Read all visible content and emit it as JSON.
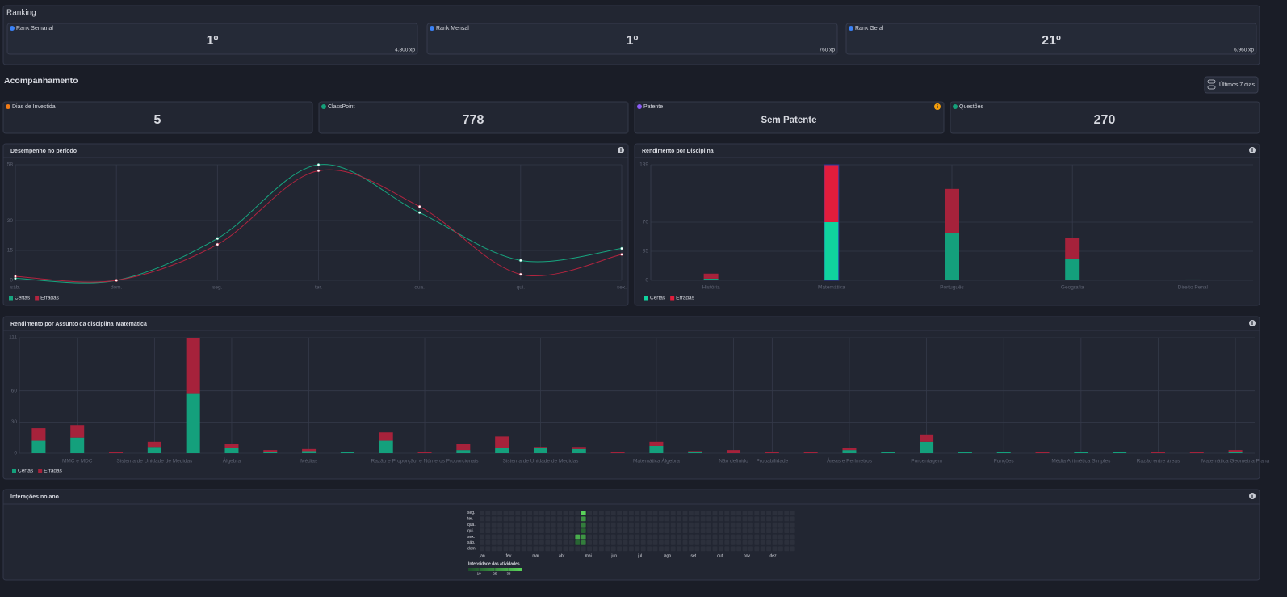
{
  "ranking": {
    "title": "Ranking",
    "cards": [
      {
        "label": "Rank Semanal",
        "position": "1º",
        "xp": "4.800 xp"
      },
      {
        "label": "Rank Mensal",
        "position": "1º",
        "xp": "760 xp"
      },
      {
        "label": "Rank Geral",
        "position": "21º",
        "xp": "6.960 xp"
      }
    ]
  },
  "tracking": {
    "title": "Acompanhamento",
    "period": "Últimos 7 dias",
    "cards": [
      {
        "label": "Dias de Investida",
        "value": 5
      },
      {
        "label": "ClassPoint",
        "value": 778
      },
      {
        "label": "Patente",
        "value": "Sem Patente"
      },
      {
        "label": "Questões",
        "value": 270
      }
    ]
  },
  "chart_data": [
    {
      "type": "line",
      "title": "Desempenho no período",
      "categories": [
        "sáb.",
        "dom.",
        "seg.",
        "ter.",
        "qua.",
        "qui.",
        "sex."
      ],
      "series": [
        {
          "name": "Certas",
          "color": "#17a57f",
          "values": [
            1,
            0,
            21,
            58,
            34,
            10,
            16
          ]
        },
        {
          "name": "Erradas",
          "color": "#b2243f",
          "values": [
            2,
            0,
            18,
            55,
            37,
            3,
            13
          ]
        }
      ],
      "ylim": [
        0,
        58
      ],
      "yticks": [
        0,
        15,
        30,
        58
      ],
      "grid": true,
      "legend": "bottom-left"
    },
    {
      "type": "bar",
      "stacked": true,
      "title": "Rendimento por Disciplina",
      "categories": [
        "História",
        "Matemática",
        "Português",
        "Geografia",
        "Direito Penal"
      ],
      "series": [
        {
          "name": "Certas",
          "color": "#14a07c",
          "highlight_color": "#10d39e",
          "values": [
            2,
            70,
            57,
            26,
            1
          ]
        },
        {
          "name": "Erradas",
          "color": "#a6223b",
          "highlight_color": "#e11d3c",
          "values": [
            6,
            69,
            53,
            25,
            0
          ]
        }
      ],
      "highlight": 1,
      "ylim": [
        0,
        139
      ],
      "yticks": [
        0,
        35,
        70,
        139
      ],
      "grid": true,
      "legend": "bottom-left"
    },
    {
      "type": "bar",
      "stacked": true,
      "title": "Rendimento por Assunto da disciplina",
      "discipline": "Matemática",
      "categories": [
        null,
        "MMC e MDC",
        null,
        "Sistema de Unidade de Medidas",
        null,
        "Álgebra",
        null,
        "Médias",
        null,
        null,
        "Razão e Proporção; e Números Proporcionais",
        null,
        null,
        "Sistema de Unidade de Medidas",
        null,
        null,
        "Matemática Álgebra",
        null,
        "Não definido",
        "Probabilidade",
        null,
        "Áreas e Perímetros",
        null,
        "Porcentagem",
        null,
        "Funções",
        null,
        "Média Aritmética Simples",
        null,
        "Razão entre áreas",
        null,
        "Matemática Geometria Plana"
      ],
      "series": [
        {
          "name": "Certas",
          "color": "#14a07c",
          "values": [
            12,
            15,
            0,
            6,
            57,
            5,
            1,
            2,
            1,
            12,
            0,
            3,
            5,
            5,
            4,
            0,
            7,
            1,
            0,
            0,
            0,
            3,
            1,
            11,
            1,
            1,
            0,
            1,
            1,
            0,
            0,
            1
          ]
        },
        {
          "name": "Erradas",
          "color": "#a6223b",
          "values": [
            12,
            12,
            1,
            5,
            54,
            4,
            2,
            2,
            0,
            8,
            1,
            6,
            11,
            1,
            2,
            1,
            4,
            1,
            3,
            1,
            1,
            2,
            0,
            7,
            0,
            0,
            1,
            0,
            0,
            1,
            1,
            2
          ]
        }
      ],
      "ylim": [
        0,
        111
      ],
      "yticks": [
        0,
        30,
        60,
        111
      ],
      "grid": true,
      "legend": "bottom-left"
    }
  ],
  "heatmap": {
    "title": "Interações no ano",
    "days": [
      "seg.",
      "ter.",
      "qua.",
      "qui.",
      "sex.",
      "sáb.",
      "dom."
    ],
    "months": [
      "jan",
      "fev",
      "mar",
      "abr",
      "mai",
      "jun",
      "jul",
      "ago",
      "set",
      "out",
      "nov",
      "dez"
    ],
    "weeks": 53,
    "cells": [
      {
        "week": 17,
        "day": 0,
        "value": 38
      },
      {
        "week": 17,
        "day": 1,
        "value": 25
      },
      {
        "week": 17,
        "day": 2,
        "value": 20
      },
      {
        "week": 17,
        "day": 3,
        "value": 15
      },
      {
        "week": 17,
        "day": 4,
        "value": 25
      },
      {
        "week": 17,
        "day": 5,
        "value": 20
      },
      {
        "week": 16,
        "day": 4,
        "value": 30
      },
      {
        "week": 16,
        "day": 5,
        "value": 15
      }
    ],
    "legend_title": "Intensidade das atividades",
    "legend_ticks": [
      10,
      25,
      38
    ]
  }
}
